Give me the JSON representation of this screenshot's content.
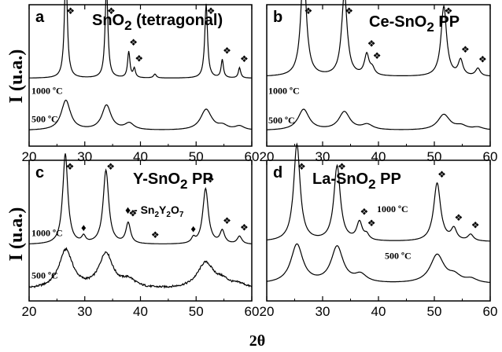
{
  "figure": {
    "xlabel": "2θ",
    "ylabel": "I (u.a.)",
    "text_color": "#000000",
    "line_color": "#000000"
  },
  "chart_data": [
    {
      "type": "line",
      "panel_label": "a",
      "title": "SnO",
      "title_sub": "2",
      "title_suffix": " (tetragonal)",
      "xlim": [
        20,
        60
      ],
      "xticks": [
        "20",
        "30",
        "40",
        "50",
        "60"
      ],
      "marker_label": "❖",
      "trace_labels": [
        "1000 ºC",
        "500 ºC"
      ],
      "peaks_1000": [
        {
          "pos": 26.6,
          "height": 0.87,
          "width": 0.3
        },
        {
          "pos": 33.9,
          "height": 0.7,
          "width": 0.3
        },
        {
          "pos": 37.9,
          "height": 0.2,
          "width": 0.25
        },
        {
          "pos": 38.9,
          "height": 0.07,
          "width": 0.25
        },
        {
          "pos": 42.6,
          "height": 0.03,
          "width": 0.3
        },
        {
          "pos": 51.8,
          "height": 0.57,
          "width": 0.3
        },
        {
          "pos": 54.7,
          "height": 0.14,
          "width": 0.25
        },
        {
          "pos": 57.8,
          "height": 0.08,
          "width": 0.25
        }
      ],
      "peaks_500": [
        {
          "pos": 26.6,
          "height": 0.23,
          "width": 1.0
        },
        {
          "pos": 33.9,
          "height": 0.19,
          "width": 1.0
        },
        {
          "pos": 38.0,
          "height": 0.05,
          "width": 1.0
        },
        {
          "pos": 51.8,
          "height": 0.16,
          "width": 1.2
        },
        {
          "pos": 54.8,
          "height": 0.03,
          "width": 1.0
        },
        {
          "pos": 57.8,
          "height": 0.03,
          "width": 1.0
        }
      ],
      "markers": [
        26.6,
        33.9,
        37.9,
        38.9,
        51.8,
        54.7,
        57.8
      ]
    },
    {
      "type": "line",
      "panel_label": "b",
      "title": "Ce-SnO",
      "title_sub": "2",
      "title_suffix": " PP",
      "xlim": [
        20,
        60
      ],
      "xticks": [
        "20",
        "30",
        "40",
        "50",
        "60"
      ],
      "marker_label": "❖",
      "trace_labels": [
        "1000 ºC",
        "500 ºC"
      ],
      "peaks_1000": [
        {
          "pos": 26.6,
          "height": 0.83,
          "width": 0.6
        },
        {
          "pos": 33.9,
          "height": 0.64,
          "width": 0.6
        },
        {
          "pos": 37.9,
          "height": 0.16,
          "width": 0.5
        },
        {
          "pos": 38.9,
          "height": 0.05,
          "width": 0.5
        },
        {
          "pos": 51.7,
          "height": 0.54,
          "width": 0.6
        },
        {
          "pos": 54.7,
          "height": 0.12,
          "width": 0.5
        },
        {
          "pos": 57.8,
          "height": 0.06,
          "width": 0.5
        }
      ],
      "peaks_500": [
        {
          "pos": 26.6,
          "height": 0.16,
          "width": 1.2
        },
        {
          "pos": 33.9,
          "height": 0.14,
          "width": 1.2
        },
        {
          "pos": 38.0,
          "height": 0.04,
          "width": 1.2
        },
        {
          "pos": 51.7,
          "height": 0.12,
          "width": 1.3
        },
        {
          "pos": 54.8,
          "height": 0.03,
          "width": 1.2
        },
        {
          "pos": 57.8,
          "height": 0.02,
          "width": 1.2
        }
      ],
      "markers": [
        26.6,
        33.9,
        37.9,
        38.9,
        51.7,
        54.7,
        57.8
      ]
    },
    {
      "type": "line",
      "panel_label": "c",
      "title": "Y-SnO",
      "title_sub": "2",
      "title_suffix": " PP",
      "xlim": [
        20,
        60
      ],
      "xticks": [
        "20",
        "30",
        "40",
        "50",
        "60"
      ],
      "marker_label": "❖",
      "trace_labels": [
        "1000 ºC",
        "500 ºC"
      ],
      "secondary_legend": {
        "symbol": "♦",
        "text": " - Sn",
        "sub1": "2",
        "mid": "Y",
        "sub2": "2",
        "end": "O",
        "sub3": "7"
      },
      "peaks_1000": [
        {
          "pos": 26.5,
          "height": 0.7,
          "width": 0.55
        },
        {
          "pos": 29.8,
          "height": 0.05,
          "width": 0.4
        },
        {
          "pos": 33.8,
          "height": 0.57,
          "width": 0.6
        },
        {
          "pos": 37.8,
          "height": 0.16,
          "width": 0.5
        },
        {
          "pos": 49.5,
          "height": 0.04,
          "width": 0.4
        },
        {
          "pos": 51.7,
          "height": 0.43,
          "width": 0.6
        },
        {
          "pos": 54.7,
          "height": 0.1,
          "width": 0.5
        },
        {
          "pos": 57.8,
          "height": 0.06,
          "width": 0.5
        }
      ],
      "peaks_500": [
        {
          "pos": 26.6,
          "height": 0.3,
          "width": 1.5
        },
        {
          "pos": 33.8,
          "height": 0.27,
          "width": 1.5
        },
        {
          "pos": 37.9,
          "height": 0.06,
          "width": 1.5
        },
        {
          "pos": 51.7,
          "height": 0.2,
          "width": 1.8
        },
        {
          "pos": 54.8,
          "height": 0.05,
          "width": 1.5
        },
        {
          "pos": 57.8,
          "height": 0.03,
          "width": 1.5
        }
      ],
      "markers": [
        26.5,
        33.8,
        37.8,
        41.8,
        51.7,
        54.7,
        57.8
      ],
      "pyrochlore_markers": [
        29.8,
        49.5
      ]
    },
    {
      "type": "line",
      "panel_label": "d",
      "title": "La-SnO",
      "title_sub": "2",
      "title_suffix": " PP",
      "xlim": [
        20,
        60
      ],
      "xticks": [
        "20",
        "30",
        "40",
        "50",
        "60"
      ],
      "marker_label": "❖",
      "trace_labels": [
        "1000 ºC",
        "500 ºC"
      ],
      "peaks_1000": [
        {
          "pos": 25.4,
          "height": 0.75,
          "width": 0.7
        },
        {
          "pos": 32.6,
          "height": 0.58,
          "width": 0.7
        },
        {
          "pos": 36.6,
          "height": 0.14,
          "width": 0.6
        },
        {
          "pos": 37.9,
          "height": 0.04,
          "width": 0.5
        },
        {
          "pos": 50.5,
          "height": 0.45,
          "width": 0.75
        },
        {
          "pos": 53.5,
          "height": 0.09,
          "width": 0.6
        },
        {
          "pos": 56.5,
          "height": 0.05,
          "width": 0.6
        }
      ],
      "peaks_500": [
        {
          "pos": 25.4,
          "height": 0.3,
          "width": 1.3
        },
        {
          "pos": 32.6,
          "height": 0.28,
          "width": 1.3
        },
        {
          "pos": 36.8,
          "height": 0.06,
          "width": 1.3
        },
        {
          "pos": 50.5,
          "height": 0.22,
          "width": 1.5
        },
        {
          "pos": 53.6,
          "height": 0.05,
          "width": 1.3
        },
        {
          "pos": 56.6,
          "height": 0.03,
          "width": 1.3
        }
      ],
      "markers": [
        25.4,
        32.6,
        36.6,
        37.9,
        50.5,
        53.5,
        56.5
      ]
    }
  ]
}
